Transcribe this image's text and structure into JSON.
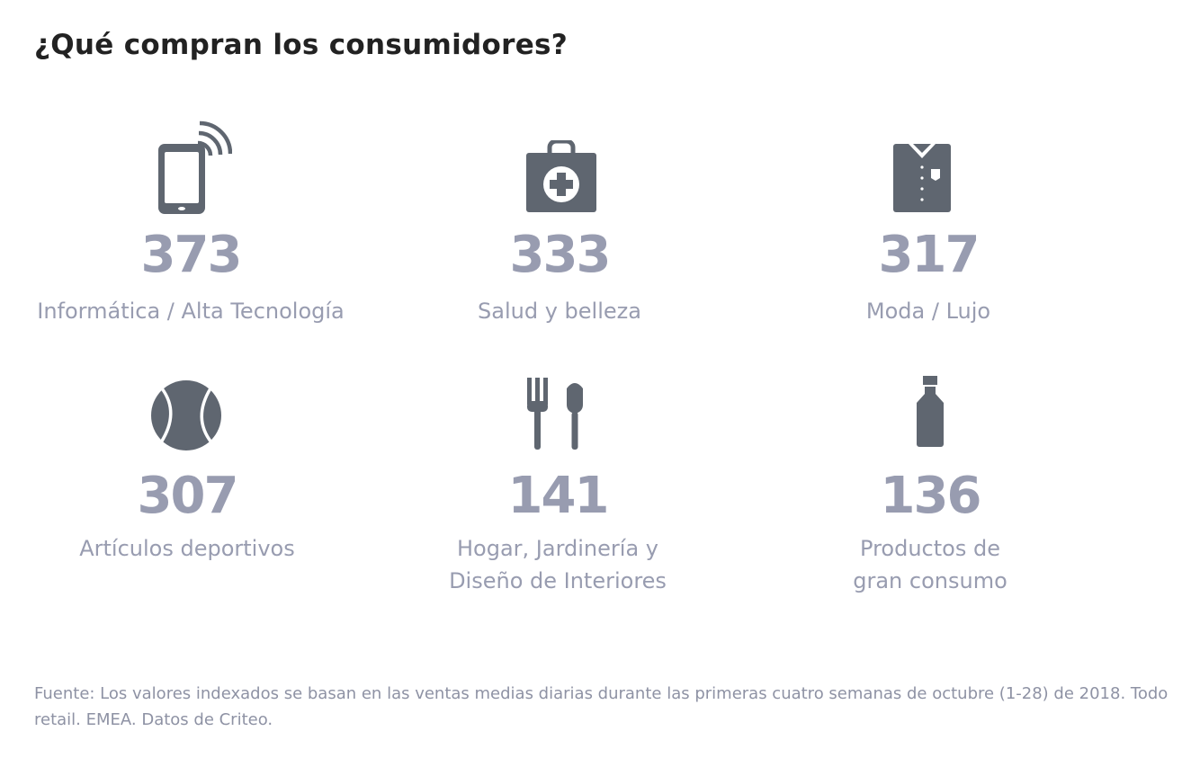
{
  "title": "¿Qué compran los consumidores?",
  "colors": {
    "icon": "#5f6670",
    "value": "#989cb0",
    "label": "#989cb0",
    "title": "#222222"
  },
  "items": [
    {
      "icon": "smartphone-signal-icon",
      "value": "373",
      "label_lines": [
        "Informática / Alta Tecnología"
      ]
    },
    {
      "icon": "first-aid-kit-icon",
      "value": "333",
      "label_lines": [
        "Salud y belleza"
      ]
    },
    {
      "icon": "shirt-icon",
      "value": "317",
      "label_lines": [
        "Moda / Lujo"
      ]
    },
    {
      "icon": "tennis-ball-icon",
      "value": "307",
      "label_lines": [
        "Artículos deportivos"
      ]
    },
    {
      "icon": "fork-shovel-icon",
      "value": "141",
      "label_lines": [
        "Hogar, Jardinería y",
        "Diseño de Interiores"
      ]
    },
    {
      "icon": "bottle-icon",
      "value": "136",
      "label_lines": [
        "Productos de",
        "gran consumo"
      ]
    }
  ],
  "footnote": "Fuente: Los valores indexados se basan en las ventas medias diarias durante las primeras cuatro semanas de octubre (1-28) de 2018. Todo retail. EMEA. Datos de Criteo."
}
